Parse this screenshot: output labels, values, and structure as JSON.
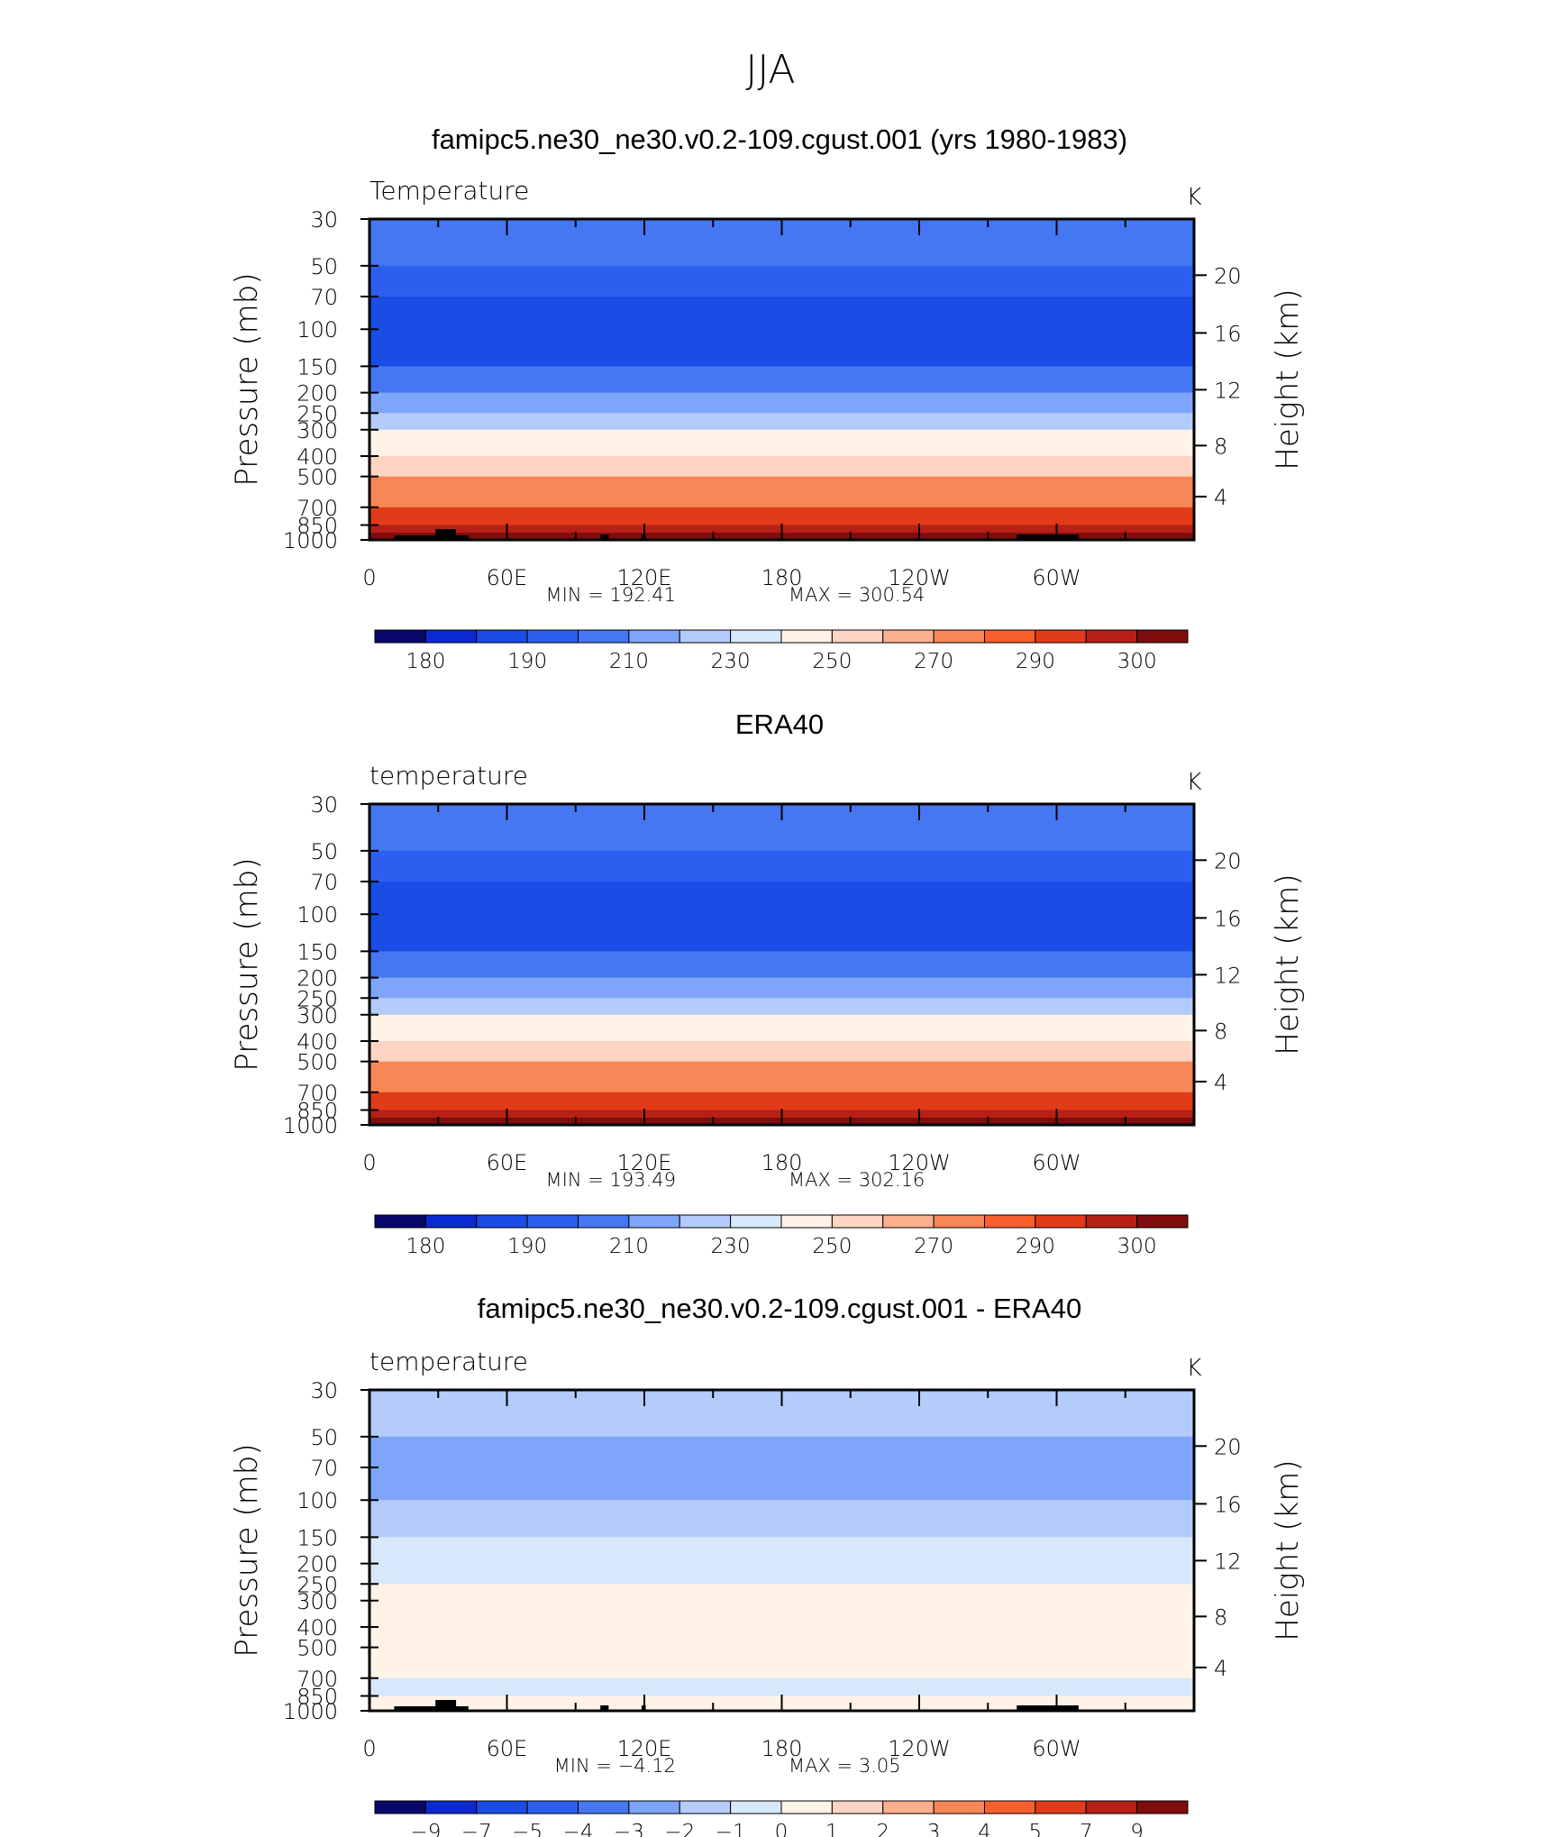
{
  "page": {
    "title": "JJA"
  },
  "colors": {
    "abs_palette": [
      "#08086b",
      "#0c2ad2",
      "#1a4ce6",
      "#2c5ff0",
      "#4677f2",
      "#7fa5fb",
      "#b3ccfb",
      "#d7e8fb",
      "#fff2e6",
      "#fdd5c2",
      "#fbaf8e",
      "#f98657",
      "#f95e2d",
      "#e23b1a",
      "#b62016",
      "#7f0d0d"
    ],
    "diff_palette": [
      "#08086b",
      "#0c2ad2",
      "#1a4ce6",
      "#2c5ff0",
      "#4677f2",
      "#7fa5fb",
      "#b3ccfb",
      "#d7e8fb",
      "#fff2e6",
      "#fdd5c2",
      "#fbaf8e",
      "#f98657",
      "#f95e2d",
      "#e23b1a",
      "#b62016",
      "#7f0d0d"
    ],
    "topography": "#000000"
  },
  "chart_data": [
    {
      "type": "heatmap",
      "panel_title": "famipc5.ne30_ne30.v0.2-109.cgust.001 (yrs 1980-1983)",
      "variable_label": "Temperature",
      "units": "K",
      "ylabel": "Pressure (mb)",
      "y2label": "Height (km)",
      "pressure_ticks": [
        "30",
        "50",
        "70",
        "100",
        "150",
        "200",
        "250",
        "300",
        "400",
        "500",
        "700",
        "850",
        "1000"
      ],
      "height_ticks": [
        "20",
        "16",
        "12",
        "8",
        "4"
      ],
      "x_ticks": [
        "0",
        "60E",
        "120E",
        "180",
        "120W",
        "60W"
      ],
      "stats": {
        "min_label": "MIN",
        "min": "192.41",
        "max_label": "MAX",
        "max": "300.54"
      },
      "colorbar_labels": [
        "180",
        "190",
        "210",
        "230",
        "250",
        "270",
        "290",
        "300"
      ],
      "levels_top_to_bottom": [
        {
          "pressure_mb": 30,
          "value": 215
        },
        {
          "pressure_mb": 50,
          "value": 205
        },
        {
          "pressure_mb": 70,
          "value": 200
        },
        {
          "pressure_mb": 100,
          "value": 196
        },
        {
          "pressure_mb": 150,
          "value": 205
        },
        {
          "pressure_mb": 200,
          "value": 215
        },
        {
          "pressure_mb": 250,
          "value": 223
        },
        {
          "pressure_mb": 300,
          "value": 232
        },
        {
          "pressure_mb": 400,
          "value": 248
        },
        {
          "pressure_mb": 500,
          "value": 258
        },
        {
          "pressure_mb": 700,
          "value": 272
        },
        {
          "pressure_mb": 850,
          "value": 283
        },
        {
          "pressure_mb": 1000,
          "value": 293
        }
      ],
      "range": [
        180,
        300
      ]
    },
    {
      "type": "heatmap",
      "panel_title": "ERA40",
      "variable_label": "temperature",
      "units": "K",
      "ylabel": "Pressure (mb)",
      "y2label": "Height (km)",
      "pressure_ticks": [
        "30",
        "50",
        "70",
        "100",
        "150",
        "200",
        "250",
        "300",
        "400",
        "500",
        "700",
        "850",
        "1000"
      ],
      "height_ticks": [
        "20",
        "16",
        "12",
        "8",
        "4"
      ],
      "x_ticks": [
        "0",
        "60E",
        "120E",
        "180",
        "120W",
        "60W"
      ],
      "stats": {
        "min_label": "MIN",
        "min": "193.49",
        "max_label": "MAX",
        "max": "302.16"
      },
      "colorbar_labels": [
        "180",
        "190",
        "210",
        "230",
        "250",
        "270",
        "290",
        "300"
      ],
      "levels_top_to_bottom": [
        {
          "pressure_mb": 30,
          "value": 215
        },
        {
          "pressure_mb": 50,
          "value": 205
        },
        {
          "pressure_mb": 70,
          "value": 200
        },
        {
          "pressure_mb": 100,
          "value": 196
        },
        {
          "pressure_mb": 150,
          "value": 205
        },
        {
          "pressure_mb": 200,
          "value": 215
        },
        {
          "pressure_mb": 250,
          "value": 223
        },
        {
          "pressure_mb": 300,
          "value": 232
        },
        {
          "pressure_mb": 400,
          "value": 248
        },
        {
          "pressure_mb": 500,
          "value": 258
        },
        {
          "pressure_mb": 700,
          "value": 272
        },
        {
          "pressure_mb": 850,
          "value": 283
        },
        {
          "pressure_mb": 1000,
          "value": 293
        }
      ],
      "range": [
        180,
        300
      ]
    },
    {
      "type": "heatmap",
      "panel_title": "famipc5.ne30_ne30.v0.2-109.cgust.001 - ERA40",
      "variable_label": "temperature",
      "units": "K",
      "ylabel": "Pressure (mb)",
      "y2label": "Height (km)",
      "pressure_ticks": [
        "30",
        "50",
        "70",
        "100",
        "150",
        "200",
        "250",
        "300",
        "400",
        "500",
        "700",
        "850",
        "1000"
      ],
      "height_ticks": [
        "20",
        "16",
        "12",
        "8",
        "4"
      ],
      "x_ticks": [
        "0",
        "60E",
        "120E",
        "180",
        "120W",
        "60W"
      ],
      "stats": {
        "min_label": "MIN",
        "min": "−4.12",
        "max_label": "MAX",
        "max": "3.05"
      },
      "colorbar_labels": [
        "−9",
        "−7",
        "−5",
        "−4",
        "−3",
        "−2",
        "−1",
        "0",
        "1",
        "2",
        "3",
        "4",
        "5",
        "7",
        "9"
      ],
      "levels_top_to_bottom": [
        {
          "pressure_mb": 30,
          "value": -1.5
        },
        {
          "pressure_mb": 50,
          "value": -1.5
        },
        {
          "pressure_mb": 70,
          "value": -3.5
        },
        {
          "pressure_mb": 100,
          "value": -2.5
        },
        {
          "pressure_mb": 150,
          "value": -1.5
        },
        {
          "pressure_mb": 200,
          "value": -0.5
        },
        {
          "pressure_mb": 250,
          "value": -0.5
        },
        {
          "pressure_mb": 300,
          "value": 0.5
        },
        {
          "pressure_mb": 400,
          "value": 0.5
        },
        {
          "pressure_mb": 500,
          "value": 0.5
        },
        {
          "pressure_mb": 700,
          "value": -0.5
        },
        {
          "pressure_mb": 850,
          "value": -0.5
        },
        {
          "pressure_mb": 1000,
          "value": 0.5
        }
      ],
      "range": [
        -9,
        9
      ]
    }
  ]
}
